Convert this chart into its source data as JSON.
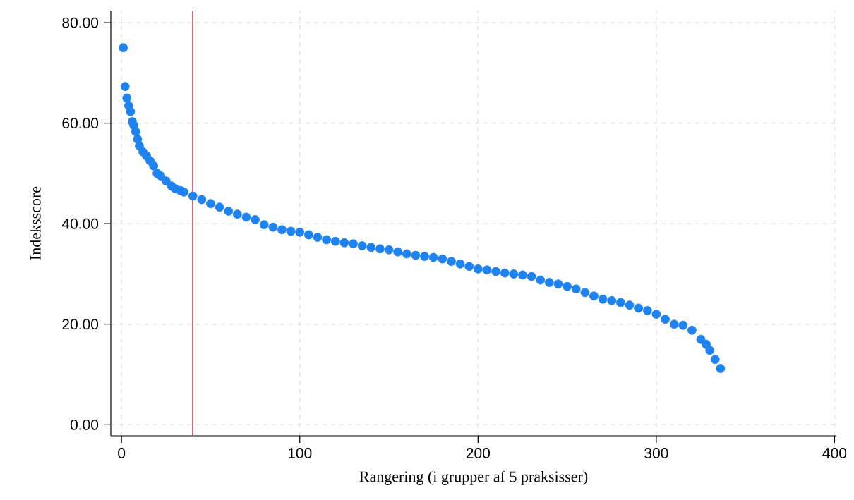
{
  "chart_data": {
    "type": "scatter",
    "xlabel": "Rangering (i grupper af 5 praksisser)",
    "ylabel": "Indeksscore",
    "x": [
      1,
      2,
      3,
      4,
      5,
      6,
      7,
      8,
      9,
      10,
      12,
      14,
      16,
      18,
      20,
      22,
      25,
      28,
      30,
      33,
      35,
      40,
      45,
      50,
      55,
      60,
      65,
      70,
      75,
      80,
      85,
      90,
      95,
      100,
      105,
      110,
      115,
      120,
      125,
      130,
      135,
      140,
      145,
      150,
      155,
      160,
      165,
      170,
      175,
      180,
      185,
      190,
      195,
      200,
      205,
      210,
      215,
      220,
      225,
      230,
      235,
      240,
      245,
      250,
      255,
      260,
      265,
      270,
      275,
      280,
      285,
      290,
      295,
      300,
      305,
      310,
      315,
      320,
      325,
      328,
      330,
      333,
      336
    ],
    "series": [
      {
        "color": "#1e82f0",
        "values": [
          75,
          67.3,
          65,
          63.5,
          62.3,
          60.3,
          59.5,
          58.3,
          56.8,
          55.5,
          54.3,
          53.5,
          52.5,
          51.5,
          50,
          49.5,
          48.5,
          47.5,
          47,
          46.6,
          46.3,
          45.5,
          44.8,
          44,
          43.3,
          42.5,
          41.9,
          41.3,
          40.8,
          39.8,
          39.3,
          38.8,
          38.5,
          38.3,
          37.8,
          37.3,
          36.8,
          36.5,
          36.2,
          36,
          35.6,
          35.3,
          35,
          34.8,
          34.4,
          34,
          33.7,
          33.5,
          33.3,
          33,
          32.5,
          32,
          31.5,
          31,
          30.8,
          30.5,
          30.2,
          30,
          29.8,
          29.5,
          28.8,
          28.3,
          28,
          27.5,
          27,
          26.3,
          25.6,
          25,
          24.7,
          24.3,
          23.8,
          23.2,
          22.7,
          22,
          21,
          20,
          19.8,
          18.8,
          17,
          16,
          14.8,
          13,
          11.2
        ]
      }
    ],
    "xlim": [
      -6,
      401
    ],
    "ylim": [
      -2.2,
      82.4
    ],
    "xticks": [
      0,
      100,
      200,
      300,
      400
    ],
    "yticks": [
      {
        "value": 0,
        "label": "0.00"
      },
      {
        "value": 20,
        "label": "20.00"
      },
      {
        "value": 40,
        "label": "40.00"
      },
      {
        "value": 60,
        "label": "60.00"
      },
      {
        "value": 80,
        "label": "80.00"
      }
    ],
    "ref_lines": [
      {
        "axis": "x",
        "value": 40,
        "color": "#c8102e"
      }
    ],
    "grid": true,
    "marker": "circle"
  }
}
